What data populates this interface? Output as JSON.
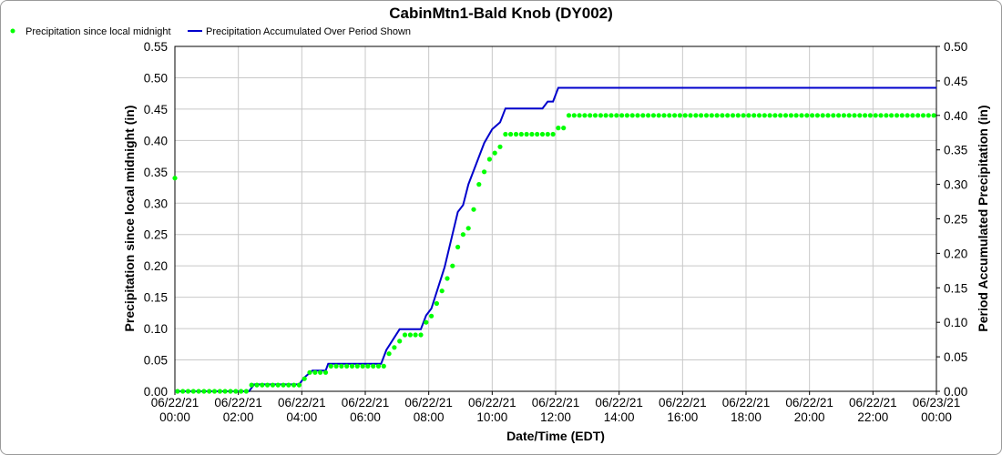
{
  "chart_data": {
    "type": "line",
    "title": "CabinMtn1-Bald Knob (DY002)",
    "xlabel": "Date/Time (EDT)",
    "ylabel_left": "Precipitation since local midnight (in)",
    "ylabel_right": "Period Accumulated Precipitation (in)",
    "left_ylim": [
      0,
      0.55
    ],
    "right_ylim": [
      0,
      0.5
    ],
    "left_ticks": [
      "0.00",
      "0.05",
      "0.10",
      "0.15",
      "0.20",
      "0.25",
      "0.30",
      "0.35",
      "0.40",
      "0.45",
      "0.50",
      "0.55"
    ],
    "right_ticks": [
      "0.00",
      "0.05",
      "0.10",
      "0.15",
      "0.20",
      "0.25",
      "0.30",
      "0.35",
      "0.40",
      "0.45",
      "0.50"
    ],
    "x_range_hours": [
      0,
      24
    ],
    "x_ticks": [
      {
        "date": "06/22/21",
        "time": "00:00"
      },
      {
        "date": "06/22/21",
        "time": "02:00"
      },
      {
        "date": "06/22/21",
        "time": "04:00"
      },
      {
        "date": "06/22/21",
        "time": "06:00"
      },
      {
        "date": "06/22/21",
        "time": "08:00"
      },
      {
        "date": "06/22/21",
        "time": "10:00"
      },
      {
        "date": "06/22/21",
        "time": "12:00"
      },
      {
        "date": "06/22/21",
        "time": "14:00"
      },
      {
        "date": "06/22/21",
        "time": "16:00"
      },
      {
        "date": "06/22/21",
        "time": "18:00"
      },
      {
        "date": "06/22/21",
        "time": "20:00"
      },
      {
        "date": "06/22/21",
        "time": "22:00"
      },
      {
        "date": "06/23/21",
        "time": "00:00"
      }
    ],
    "grid": true,
    "legend_position": "top-left",
    "series": [
      {
        "name": "Precipitation since local midnight",
        "axis": "left",
        "kind": "points",
        "color": "#00ff00",
        "points": [
          [
            0.0,
            0.34
          ],
          [
            0.083,
            0.0
          ],
          [
            0.25,
            0.0
          ],
          [
            0.417,
            0.0
          ],
          [
            0.583,
            0.0
          ],
          [
            0.75,
            0.0
          ],
          [
            0.917,
            0.0
          ],
          [
            1.083,
            0.0
          ],
          [
            1.25,
            0.0
          ],
          [
            1.417,
            0.0
          ],
          [
            1.583,
            0.0
          ],
          [
            1.75,
            0.0
          ],
          [
            1.917,
            0.0
          ],
          [
            2.083,
            0.0
          ],
          [
            2.25,
            0.0
          ],
          [
            2.417,
            0.01
          ],
          [
            2.583,
            0.01
          ],
          [
            2.75,
            0.01
          ],
          [
            2.917,
            0.01
          ],
          [
            3.083,
            0.01
          ],
          [
            3.25,
            0.01
          ],
          [
            3.417,
            0.01
          ],
          [
            3.583,
            0.01
          ],
          [
            3.75,
            0.01
          ],
          [
            3.917,
            0.01
          ],
          [
            4.083,
            0.02
          ],
          [
            4.25,
            0.03
          ],
          [
            4.417,
            0.03
          ],
          [
            4.583,
            0.03
          ],
          [
            4.75,
            0.03
          ],
          [
            4.917,
            0.04
          ],
          [
            5.083,
            0.04
          ],
          [
            5.25,
            0.04
          ],
          [
            5.417,
            0.04
          ],
          [
            5.583,
            0.04
          ],
          [
            5.75,
            0.04
          ],
          [
            5.917,
            0.04
          ],
          [
            6.083,
            0.04
          ],
          [
            6.25,
            0.04
          ],
          [
            6.417,
            0.04
          ],
          [
            6.583,
            0.04
          ],
          [
            6.75,
            0.06
          ],
          [
            6.917,
            0.07
          ],
          [
            7.083,
            0.08
          ],
          [
            7.25,
            0.09
          ],
          [
            7.417,
            0.09
          ],
          [
            7.583,
            0.09
          ],
          [
            7.75,
            0.09
          ],
          [
            7.917,
            0.11
          ],
          [
            8.083,
            0.12
          ],
          [
            8.25,
            0.14
          ],
          [
            8.417,
            0.16
          ],
          [
            8.583,
            0.18
          ],
          [
            8.75,
            0.2
          ],
          [
            8.917,
            0.23
          ],
          [
            9.083,
            0.25
          ],
          [
            9.25,
            0.26
          ],
          [
            9.417,
            0.29
          ],
          [
            9.583,
            0.33
          ],
          [
            9.75,
            0.35
          ],
          [
            9.917,
            0.37
          ],
          [
            10.083,
            0.38
          ],
          [
            10.25,
            0.39
          ],
          [
            10.417,
            0.41
          ],
          [
            10.583,
            0.41
          ],
          [
            10.75,
            0.41
          ],
          [
            10.917,
            0.41
          ],
          [
            11.083,
            0.41
          ],
          [
            11.25,
            0.41
          ],
          [
            11.417,
            0.41
          ],
          [
            11.583,
            0.41
          ],
          [
            11.75,
            0.41
          ],
          [
            11.917,
            0.41
          ],
          [
            12.083,
            0.42
          ],
          [
            12.25,
            0.42
          ],
          [
            12.417,
            0.44
          ],
          [
            12.583,
            0.44
          ],
          [
            12.75,
            0.44
          ],
          [
            12.917,
            0.44
          ],
          [
            13.083,
            0.44
          ],
          [
            13.25,
            0.44
          ],
          [
            13.417,
            0.44
          ],
          [
            13.583,
            0.44
          ],
          [
            13.75,
            0.44
          ],
          [
            13.917,
            0.44
          ],
          [
            14.083,
            0.44
          ],
          [
            14.25,
            0.44
          ],
          [
            14.417,
            0.44
          ],
          [
            14.583,
            0.44
          ],
          [
            14.75,
            0.44
          ],
          [
            14.917,
            0.44
          ],
          [
            15.083,
            0.44
          ],
          [
            15.25,
            0.44
          ],
          [
            15.417,
            0.44
          ],
          [
            15.583,
            0.44
          ],
          [
            15.75,
            0.44
          ],
          [
            15.917,
            0.44
          ],
          [
            16.083,
            0.44
          ],
          [
            16.25,
            0.44
          ],
          [
            16.417,
            0.44
          ],
          [
            16.583,
            0.44
          ],
          [
            16.75,
            0.44
          ],
          [
            16.917,
            0.44
          ],
          [
            17.083,
            0.44
          ],
          [
            17.25,
            0.44
          ],
          [
            17.417,
            0.44
          ],
          [
            17.583,
            0.44
          ],
          [
            17.75,
            0.44
          ],
          [
            17.917,
            0.44
          ],
          [
            18.083,
            0.44
          ],
          [
            18.25,
            0.44
          ],
          [
            18.417,
            0.44
          ],
          [
            18.583,
            0.44
          ],
          [
            18.75,
            0.44
          ],
          [
            18.917,
            0.44
          ],
          [
            19.083,
            0.44
          ],
          [
            19.25,
            0.44
          ],
          [
            19.417,
            0.44
          ],
          [
            19.583,
            0.44
          ],
          [
            19.75,
            0.44
          ],
          [
            19.917,
            0.44
          ],
          [
            20.083,
            0.44
          ],
          [
            20.25,
            0.44
          ],
          [
            20.417,
            0.44
          ],
          [
            20.583,
            0.44
          ],
          [
            20.75,
            0.44
          ],
          [
            20.917,
            0.44
          ],
          [
            21.083,
            0.44
          ],
          [
            21.25,
            0.44
          ],
          [
            21.417,
            0.44
          ],
          [
            21.583,
            0.44
          ],
          [
            21.75,
            0.44
          ],
          [
            21.917,
            0.44
          ],
          [
            22.083,
            0.44
          ],
          [
            22.25,
            0.44
          ],
          [
            22.417,
            0.44
          ],
          [
            22.583,
            0.44
          ],
          [
            22.75,
            0.44
          ],
          [
            22.917,
            0.44
          ],
          [
            23.083,
            0.44
          ],
          [
            23.25,
            0.44
          ],
          [
            23.417,
            0.44
          ],
          [
            23.583,
            0.44
          ],
          [
            23.75,
            0.44
          ],
          [
            23.917,
            0.44
          ]
        ]
      },
      {
        "name": "Precipitation Accumulated Over Period Shown",
        "axis": "right",
        "kind": "line",
        "color": "#0000cc",
        "points": [
          [
            0.0,
            0.0
          ],
          [
            2.333,
            0.0
          ],
          [
            2.5,
            0.01
          ],
          [
            3.917,
            0.01
          ],
          [
            4.083,
            0.02
          ],
          [
            4.333,
            0.03
          ],
          [
            4.75,
            0.03
          ],
          [
            4.833,
            0.04
          ],
          [
            6.5,
            0.04
          ],
          [
            6.667,
            0.06
          ],
          [
            7.083,
            0.09
          ],
          [
            7.75,
            0.09
          ],
          [
            7.917,
            0.11
          ],
          [
            8.083,
            0.12
          ],
          [
            8.5,
            0.18
          ],
          [
            8.917,
            0.26
          ],
          [
            9.083,
            0.27
          ],
          [
            9.25,
            0.3
          ],
          [
            9.5,
            0.33
          ],
          [
            9.75,
            0.36
          ],
          [
            10.0,
            0.38
          ],
          [
            10.25,
            0.39
          ],
          [
            10.417,
            0.41
          ],
          [
            11.583,
            0.41
          ],
          [
            11.75,
            0.42
          ],
          [
            11.917,
            0.42
          ],
          [
            12.083,
            0.44
          ],
          [
            24.0,
            0.44
          ]
        ]
      }
    ]
  }
}
